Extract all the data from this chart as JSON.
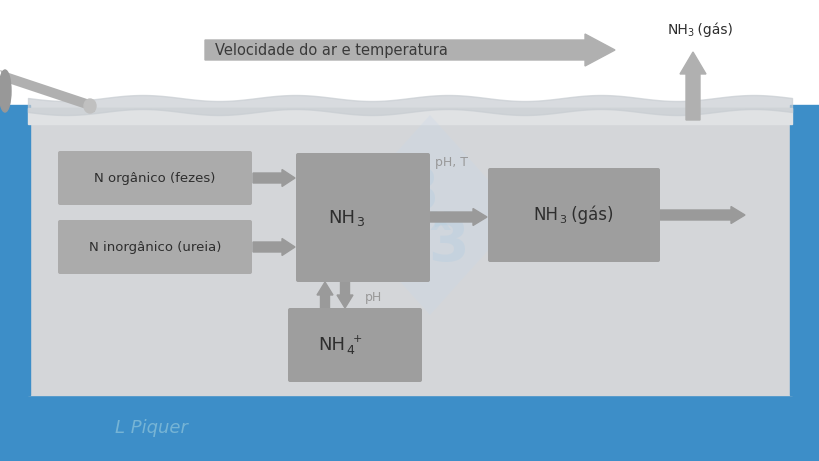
{
  "bg_white": "#ffffff",
  "bg_blue": "#3d8ec8",
  "bg_gray_light": "#e2e4e6",
  "bg_gray_tank": "#d4d6d9",
  "box_light": "#ababab",
  "box_medium": "#9e9e9e",
  "arrow_color": "#9a9a9a",
  "text_dark": "#2e2e2e",
  "text_gray": "#999999",
  "text_blue_light": "#6bb0d8",
  "title_arrow_text": "Velocidade do ar e temperatura",
  "label_nh3_gas_top": "NH",
  "label_nh3_gas_top_sub": "3",
  "label_nh3_gas_top_rest": " (gás)",
  "label_n_organico": "N orgânico (fezes)",
  "label_n_inorganico": "N inorgânico (ureia)",
  "label_nh3_center": "NH",
  "label_nh3_center_sub": "3",
  "label_nh3_gas": "NH",
  "label_nh3_gas_sub": "3",
  "label_nh3_gas_rest": " (gás)",
  "label_nh4": "NH",
  "label_nh4_sub": "4",
  "label_nh4_sup": "+",
  "label_ph_t": "pH, T",
  "label_ph": "pH",
  "label_lpiquer": "L Piquer",
  "figsize": [
    8.2,
    4.61
  ],
  "dpi": 100
}
